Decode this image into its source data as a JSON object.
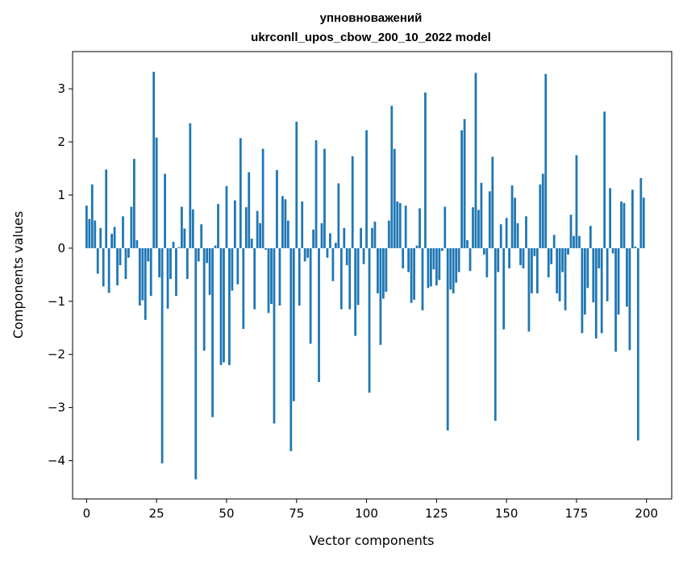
{
  "chart_data": {
    "type": "bar",
    "title_lines": [
      "упновноважений",
      "ukrconll_upos_cbow_200_10_2022 model"
    ],
    "xlabel": "Vector components",
    "ylabel": "Components values",
    "xlim": [
      -5,
      209
    ],
    "ylim": [
      -4.72,
      3.7
    ],
    "xticks": [
      0,
      25,
      50,
      75,
      100,
      125,
      150,
      175,
      200
    ],
    "yticks": [
      -4,
      -3,
      -2,
      -1,
      0,
      1,
      2,
      3
    ],
    "ytick_labels": [
      "−4",
      "−3",
      "−2",
      "−1",
      "0",
      "1",
      "2",
      "3"
    ],
    "bar_color": "#1f77b4",
    "x": [
      0,
      1,
      2,
      3,
      4,
      5,
      6,
      7,
      8,
      9,
      10,
      11,
      12,
      13,
      14,
      15,
      16,
      17,
      18,
      19,
      20,
      21,
      22,
      23,
      24,
      25,
      26,
      27,
      28,
      29,
      30,
      31,
      32,
      33,
      34,
      35,
      36,
      37,
      38,
      39,
      40,
      41,
      42,
      43,
      44,
      45,
      46,
      47,
      48,
      49,
      50,
      51,
      52,
      53,
      54,
      55,
      56,
      57,
      58,
      59,
      60,
      61,
      62,
      63,
      64,
      65,
      66,
      67,
      68,
      69,
      70,
      71,
      72,
      73,
      74,
      75,
      76,
      77,
      78,
      79,
      80,
      81,
      82,
      83,
      84,
      85,
      86,
      87,
      88,
      89,
      90,
      91,
      92,
      93,
      94,
      95,
      96,
      97,
      98,
      99,
      100,
      101,
      102,
      103,
      104,
      105,
      106,
      107,
      108,
      109,
      110,
      111,
      112,
      113,
      114,
      115,
      116,
      117,
      118,
      119,
      120,
      121,
      122,
      123,
      124,
      125,
      126,
      127,
      128,
      129,
      130,
      131,
      132,
      133,
      134,
      135,
      136,
      137,
      138,
      139,
      140,
      141,
      142,
      143,
      144,
      145,
      146,
      147,
      148,
      149,
      150,
      151,
      152,
      153,
      154,
      155,
      156,
      157,
      158,
      159,
      160,
      161,
      162,
      163,
      164,
      165,
      166,
      167,
      168,
      169,
      170,
      171,
      172,
      173,
      174,
      175,
      176,
      177,
      178,
      179,
      180,
      181,
      182,
      183,
      184,
      185,
      186,
      187,
      188,
      189,
      190,
      191,
      192,
      193,
      194,
      195,
      196,
      197,
      198,
      199
    ],
    "values": [
      0.8,
      0.55,
      1.2,
      0.52,
      -0.48,
      0.38,
      -0.72,
      1.48,
      -0.84,
      0.27,
      0.4,
      -0.7,
      -0.32,
      0.6,
      -0.58,
      -0.18,
      0.78,
      1.68,
      0.15,
      -1.08,
      -0.98,
      -1.35,
      -0.25,
      -0.9,
      3.32,
      2.08,
      -0.55,
      -4.05,
      1.4,
      -1.14,
      -0.58,
      0.12,
      -0.9,
      0.02,
      0.78,
      0.37,
      -0.58,
      2.35,
      0.73,
      -4.35,
      -0.25,
      0.45,
      -1.93,
      -0.28,
      -0.88,
      -3.18,
      0.05,
      0.83,
      -2.2,
      -2.15,
      1.17,
      -2.2,
      -0.8,
      0.9,
      -0.68,
      2.07,
      -1.52,
      0.77,
      1.43,
      0.18,
      -1.15,
      0.7,
      0.47,
      1.87,
      -0.03,
      -1.22,
      -1.05,
      -3.3,
      1.47,
      -1.08,
      0.98,
      0.92,
      0.52,
      -3.82,
      -2.88,
      2.38,
      -1.08,
      0.88,
      -0.25,
      -0.18,
      -1.8,
      0.35,
      2.03,
      -2.52,
      0.47,
      1.87,
      -0.18,
      0.28,
      -0.62,
      0.1,
      1.22,
      -1.15,
      0.38,
      -0.32,
      -1.15,
      1.73,
      -1.65,
      -1.07,
      0.38,
      -0.3,
      2.22,
      -2.72,
      0.38,
      0.5,
      -0.85,
      -1.82,
      -0.95,
      -0.82,
      0.52,
      2.68,
      1.87,
      0.88,
      0.85,
      -0.38,
      0.8,
      -0.45,
      -1.03,
      -0.97,
      0.05,
      0.75,
      -1.17,
      2.93,
      -0.75,
      -0.72,
      -0.4,
      -0.7,
      -0.6,
      -0.05,
      0.78,
      -3.43,
      -0.78,
      -0.85,
      -0.65,
      -0.45,
      2.22,
      2.43,
      0.15,
      -0.43,
      0.77,
      3.3,
      0.72,
      1.23,
      -0.12,
      -0.55,
      1.07,
      1.72,
      -3.25,
      -0.45,
      0.45,
      -1.53,
      0.57,
      -0.38,
      1.18,
      0.95,
      0.47,
      -0.32,
      -0.38,
      0.6,
      -1.57,
      -0.85,
      -0.15,
      -0.85,
      1.2,
      1.4,
      3.28,
      -0.55,
      -0.3,
      0.25,
      -0.85,
      -1.0,
      -0.45,
      -1.17,
      -0.12,
      0.63,
      0.23,
      1.75,
      0.23,
      -1.6,
      -1.25,
      -0.75,
      0.42,
      -1.02,
      -1.7,
      -0.38,
      -1.6,
      2.57,
      -1.0,
      1.13,
      -0.1,
      -1.95,
      -1.25,
      0.88,
      0.85,
      -1.1,
      -1.92,
      1.1,
      0.03,
      -3.62,
      1.32,
      0.95
    ]
  }
}
